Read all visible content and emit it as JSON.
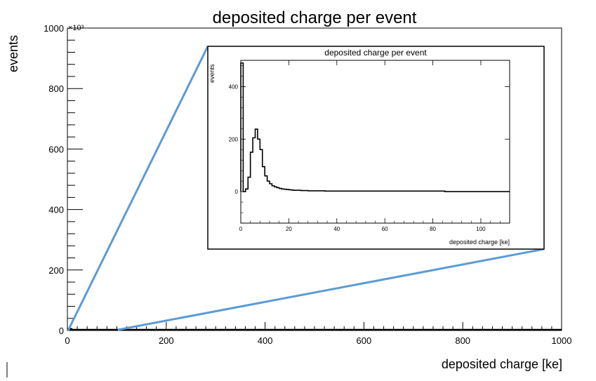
{
  "chart_data": [
    {
      "type": "histogram",
      "title": "deposited charge per event",
      "xlabel": "deposited charge [ke]",
      "ylabel": "events",
      "y_exponent_label": "×10³",
      "xlim": [
        0,
        1000
      ],
      "ylim": [
        0,
        1000
      ],
      "x_ticks": [
        0,
        200,
        400,
        600,
        800,
        1000
      ],
      "y_ticks": [
        0,
        200,
        400,
        600,
        800,
        1000
      ],
      "x_tick_labels": [
        "0",
        "200",
        "400",
        "600",
        "800",
        "1000"
      ],
      "y_tick_labels": [
        "0",
        "200",
        "400",
        "600",
        "800",
        "1000"
      ],
      "bins": [
        {
          "x0": 0,
          "x1": 10,
          "y": 8
        },
        {
          "x0": 10,
          "x1": 20,
          "y": 2
        },
        {
          "x0": 20,
          "x1": 40,
          "y": 1
        },
        {
          "x0": 40,
          "x1": 60,
          "y": 2
        },
        {
          "x0": 60,
          "x1": 80,
          "y": 1
        },
        {
          "x0": 80,
          "x1": 100,
          "y": 1
        }
      ],
      "grid": false
    },
    {
      "type": "histogram",
      "role": "zoomed inset",
      "title": "deposited charge per event",
      "xlabel": "deposited charge [ke]",
      "ylabel": "events",
      "xlim": [
        0,
        112
      ],
      "ylim": [
        -120,
        500
      ],
      "x_ticks": [
        0,
        20,
        40,
        60,
        80,
        100
      ],
      "y_ticks": [
        0,
        200,
        400
      ],
      "x_tick_labels": [
        "0",
        "20",
        "40",
        "60",
        "80",
        "100"
      ],
      "y_tick_labels": [
        "0",
        "200",
        "400"
      ],
      "bin_width": 1,
      "x_start": 0,
      "values": [
        490,
        0,
        10,
        55,
        150,
        205,
        238,
        200,
        160,
        95,
        60,
        40,
        30,
        22,
        18,
        15,
        12,
        10,
        9,
        8,
        7,
        6,
        5,
        5,
        5,
        4,
        4,
        4,
        3,
        3,
        3,
        3,
        3,
        3,
        3,
        2,
        2,
        2,
        2,
        2,
        2,
        2,
        2,
        2,
        2,
        2,
        2,
        2,
        2,
        2,
        2,
        2,
        2,
        2,
        2,
        2,
        2,
        2,
        2,
        2,
        2,
        2,
        2,
        2,
        2,
        2,
        2,
        2,
        2,
        2,
        2,
        2,
        2,
        2,
        2,
        2,
        2,
        2,
        2,
        2,
        2,
        2,
        2,
        2,
        2
      ],
      "grid": false
    }
  ],
  "colors": {
    "zoom_lines": "#5b9bd5",
    "histogram": "#000000"
  }
}
